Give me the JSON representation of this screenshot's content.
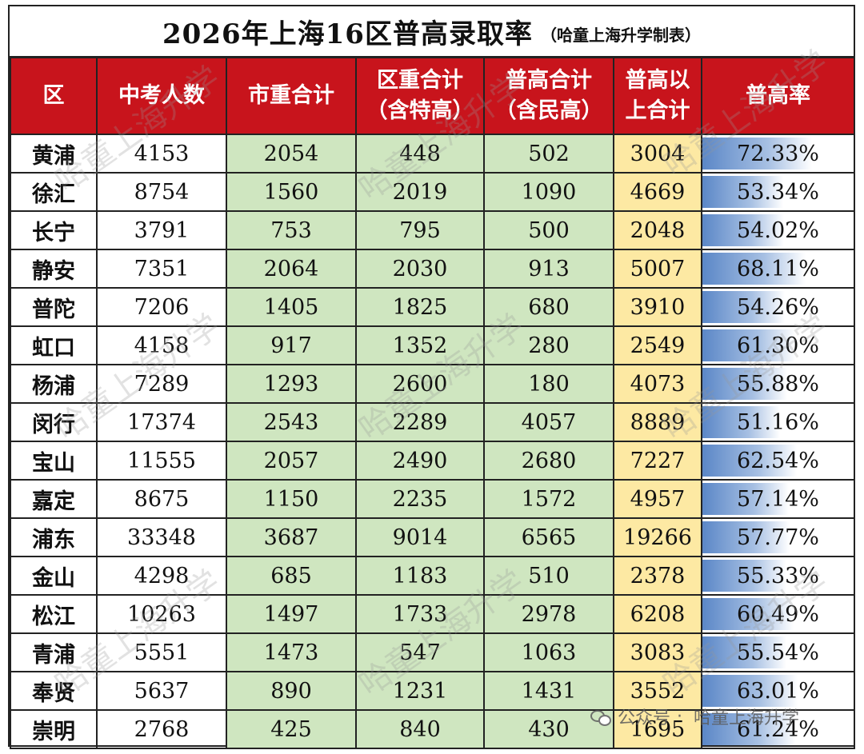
{
  "title": "2026年上海16区普高录取率",
  "subtitle": "（哈童上海升学制表）",
  "headers": [
    {
      "line1": "区",
      "line2": ""
    },
    {
      "line1": "中考人数",
      "line2": ""
    },
    {
      "line1": "市重合计",
      "line2": ""
    },
    {
      "line1": "区重合计",
      "line2": "（含特高）"
    },
    {
      "line1": "普高合计",
      "line2": "（含民高）"
    },
    {
      "line1": "普高以",
      "line2": "上合计"
    },
    {
      "line1": "普高率",
      "line2": ""
    }
  ],
  "rows": [
    {
      "district": "黄浦",
      "students": "4153",
      "city_key": "2054",
      "district_key": "448",
      "general": "502",
      "total": "3004",
      "rate": "72.33%",
      "rate_value": 72.33
    },
    {
      "district": "徐汇",
      "students": "8754",
      "city_key": "1560",
      "district_key": "2019",
      "general": "1090",
      "total": "4669",
      "rate": "53.34%",
      "rate_value": 53.34
    },
    {
      "district": "长宁",
      "students": "3791",
      "city_key": "753",
      "district_key": "795",
      "general": "500",
      "total": "2048",
      "rate": "54.02%",
      "rate_value": 54.02
    },
    {
      "district": "静安",
      "students": "7351",
      "city_key": "2064",
      "district_key": "2030",
      "general": "913",
      "total": "5007",
      "rate": "68.11%",
      "rate_value": 68.11
    },
    {
      "district": "普陀",
      "students": "7206",
      "city_key": "1405",
      "district_key": "1825",
      "general": "680",
      "total": "3910",
      "rate": "54.26%",
      "rate_value": 54.26
    },
    {
      "district": "虹口",
      "students": "4158",
      "city_key": "917",
      "district_key": "1352",
      "general": "280",
      "total": "2549",
      "rate": "61.30%",
      "rate_value": 61.3
    },
    {
      "district": "杨浦",
      "students": "7289",
      "city_key": "1293",
      "district_key": "2600",
      "general": "180",
      "total": "4073",
      "rate": "55.88%",
      "rate_value": 55.88
    },
    {
      "district": "闵行",
      "students": "17374",
      "city_key": "2543",
      "district_key": "2289",
      "general": "4057",
      "total": "8889",
      "rate": "51.16%",
      "rate_value": 51.16
    },
    {
      "district": "宝山",
      "students": "11555",
      "city_key": "2057",
      "district_key": "2490",
      "general": "2680",
      "total": "7227",
      "rate": "62.54%",
      "rate_value": 62.54
    },
    {
      "district": "嘉定",
      "students": "8675",
      "city_key": "1150",
      "district_key": "2235",
      "general": "1572",
      "total": "4957",
      "rate": "57.14%",
      "rate_value": 57.14
    },
    {
      "district": "浦东",
      "students": "33348",
      "city_key": "3687",
      "district_key": "9014",
      "general": "6565",
      "total": "19266",
      "rate": "57.77%",
      "rate_value": 57.77
    },
    {
      "district": "金山",
      "students": "4298",
      "city_key": "685",
      "district_key": "1183",
      "general": "510",
      "total": "2378",
      "rate": "55.33%",
      "rate_value": 55.33
    },
    {
      "district": "松江",
      "students": "10263",
      "city_key": "1497",
      "district_key": "1733",
      "general": "2978",
      "total": "6208",
      "rate": "60.49%",
      "rate_value": 60.49
    },
    {
      "district": "青浦",
      "students": "5551",
      "city_key": "1473",
      "district_key": "547",
      "general": "1063",
      "total": "3083",
      "rate": "55.54%",
      "rate_value": 55.54
    },
    {
      "district": "奉贤",
      "students": "5637",
      "city_key": "890",
      "district_key": "1231",
      "general": "1431",
      "total": "3552",
      "rate": "63.01%",
      "rate_value": 63.01
    },
    {
      "district": "崇明",
      "students": "2768",
      "city_key": "425",
      "district_key": "840",
      "general": "430",
      "total": "1695",
      "rate": "61.24%",
      "rate_value": 61.24
    }
  ],
  "watermark": "哈童上海升学",
  "wechat": {
    "label": "公众号",
    "name": "哈童上海升学"
  },
  "colors": {
    "header_bg": "#c8141c",
    "green_cell": "#cfe6c0",
    "yellow_cell": "#fde9a3",
    "bar": "#5b87c7"
  }
}
